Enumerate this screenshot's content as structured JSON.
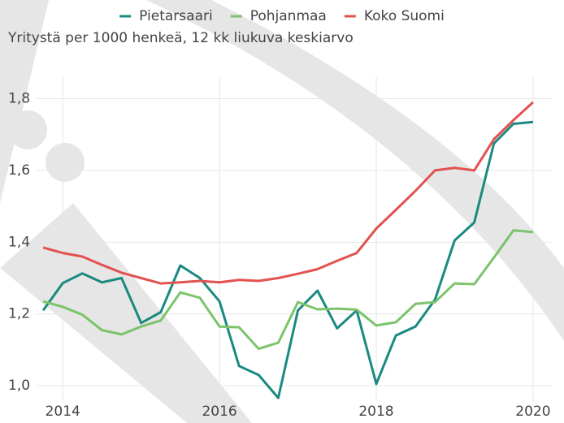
{
  "chart_data": {
    "type": "line",
    "subtitle": "Yritystä per 1000 henkeä, 12 kk liukuva keskiarvo",
    "x": [
      2013.75,
      2014,
      2014.25,
      2014.5,
      2014.75,
      2015,
      2015.25,
      2015.5,
      2015.75,
      2016,
      2016.25,
      2016.5,
      2016.75,
      2017,
      2017.25,
      2017.5,
      2017.75,
      2018,
      2018.25,
      2018.5,
      2018.75,
      2019,
      2019.25,
      2019.5,
      2019.75,
      2020
    ],
    "series": [
      {
        "name": "Pietarsaari",
        "color": "#1a8a80",
        "values": [
          1.21,
          1.286,
          1.313,
          1.288,
          1.3,
          1.175,
          1.205,
          1.335,
          1.3,
          1.235,
          1.055,
          1.03,
          0.966,
          1.21,
          1.265,
          1.16,
          1.21,
          1.005,
          1.14,
          1.165,
          1.24,
          1.405,
          1.455,
          1.675,
          1.73,
          1.735
        ]
      },
      {
        "name": "Pohjanmaa",
        "color": "#7cc36b",
        "values": [
          1.235,
          1.22,
          1.198,
          1.155,
          1.143,
          1.165,
          1.182,
          1.26,
          1.245,
          1.165,
          1.163,
          1.103,
          1.12,
          1.233,
          1.213,
          1.215,
          1.212,
          1.168,
          1.177,
          1.228,
          1.233,
          1.285,
          1.283,
          1.357,
          1.433,
          1.428
        ]
      },
      {
        "name": "Koko Suomi",
        "color": "#e2524f",
        "values": [
          1.385,
          1.37,
          1.36,
          1.337,
          1.315,
          1.3,
          1.285,
          1.288,
          1.292,
          1.288,
          1.295,
          1.292,
          1.3,
          1.312,
          1.325,
          1.348,
          1.37,
          1.438,
          1.49,
          1.543,
          1.6,
          1.607,
          1.6,
          1.687,
          1.74,
          1.79
        ]
      }
    ],
    "xlim": [
      2013.5,
      2020.25
    ],
    "xticks": [
      2014,
      2016,
      2018,
      2020
    ],
    "ylim": [
      0.955,
      1.86
    ],
    "yticks": [
      {
        "value": 1.0,
        "label": "1,0"
      },
      {
        "value": 1.2,
        "label": "1,2"
      },
      {
        "value": 1.4,
        "label": "1,4"
      },
      {
        "value": 1.6,
        "label": "1,6"
      },
      {
        "value": 1.8,
        "label": "1,8"
      }
    ],
    "grid": true
  }
}
